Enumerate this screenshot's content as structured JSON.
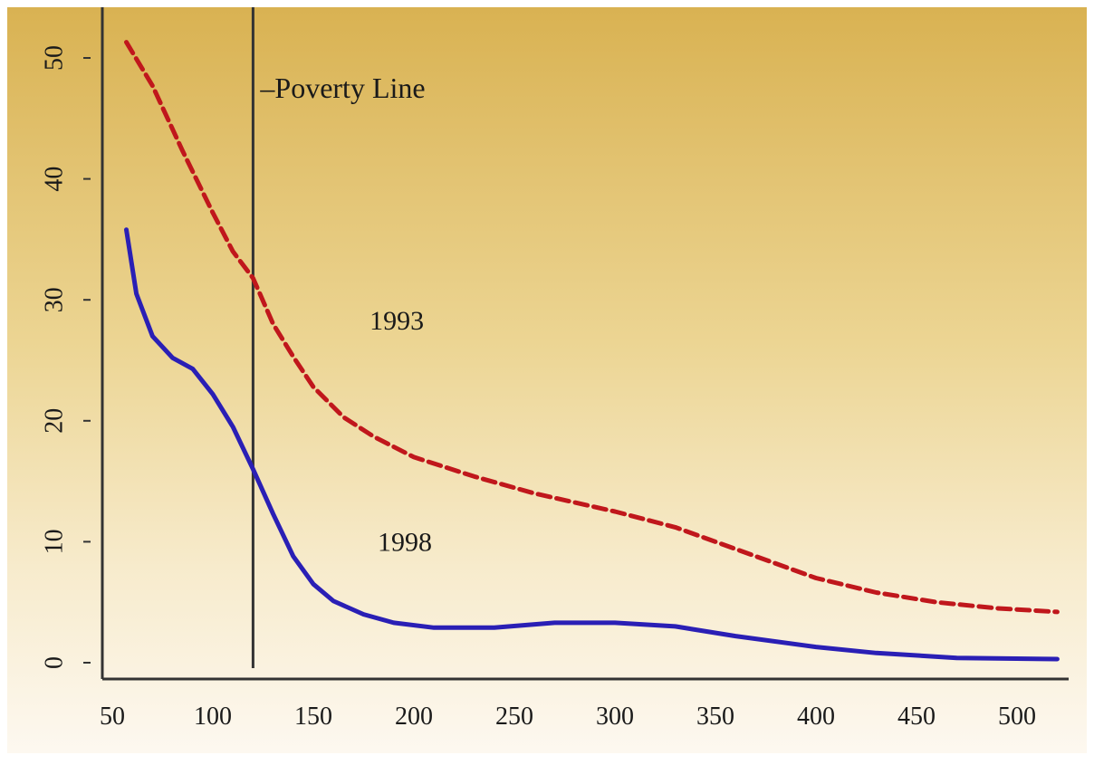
{
  "chart_data": {
    "type": "line",
    "title": "",
    "xlabel": "",
    "ylabel": "",
    "xlim": [
      50,
      520
    ],
    "ylim": [
      0,
      53
    ],
    "x_ticks": [
      50,
      100,
      150,
      200,
      250,
      300,
      350,
      400,
      450,
      500
    ],
    "y_ticks": [
      0,
      10,
      20,
      30,
      40,
      50
    ],
    "grid": false,
    "legend": "none",
    "annotations": [
      {
        "name": "poverty-line",
        "label": "–Poverty Line",
        "x": 120
      }
    ],
    "series": [
      {
        "name": "1993",
        "color": "#c0171c",
        "dash": "dashed",
        "x": [
          57,
          70,
          85,
          100,
          110,
          120,
          130,
          140,
          150,
          165,
          180,
          200,
          230,
          260,
          300,
          330,
          360,
          400,
          430,
          460,
          490,
          520
        ],
        "y": [
          51.3,
          47.7,
          42.3,
          37.2,
          34.0,
          31.8,
          28.0,
          25.3,
          22.8,
          20.3,
          18.7,
          17.0,
          15.4,
          14.0,
          12.5,
          11.2,
          9.4,
          7.0,
          5.8,
          5.0,
          4.5,
          4.2
        ]
      },
      {
        "name": "1998",
        "color": "#2a1fb5",
        "dash": "solid",
        "x": [
          57,
          62,
          70,
          80,
          90,
          100,
          110,
          120,
          130,
          140,
          150,
          160,
          175,
          190,
          210,
          240,
          270,
          300,
          330,
          360,
          400,
          430,
          470,
          520
        ],
        "y": [
          35.8,
          30.5,
          27.0,
          25.2,
          24.3,
          22.2,
          19.5,
          16.0,
          12.3,
          8.8,
          6.5,
          5.1,
          4.0,
          3.3,
          2.9,
          2.9,
          3.3,
          3.3,
          3.0,
          2.2,
          1.3,
          0.8,
          0.4,
          0.3
        ]
      }
    ],
    "series_labels": [
      {
        "text": "1993",
        "x": 178,
        "y": 28.3
      },
      {
        "text": "1998",
        "x": 182,
        "y": 10.0
      }
    ]
  },
  "colors": {
    "background_top": "#d9b252",
    "background_bottom": "#fdf8f0",
    "axis": "#333333"
  }
}
